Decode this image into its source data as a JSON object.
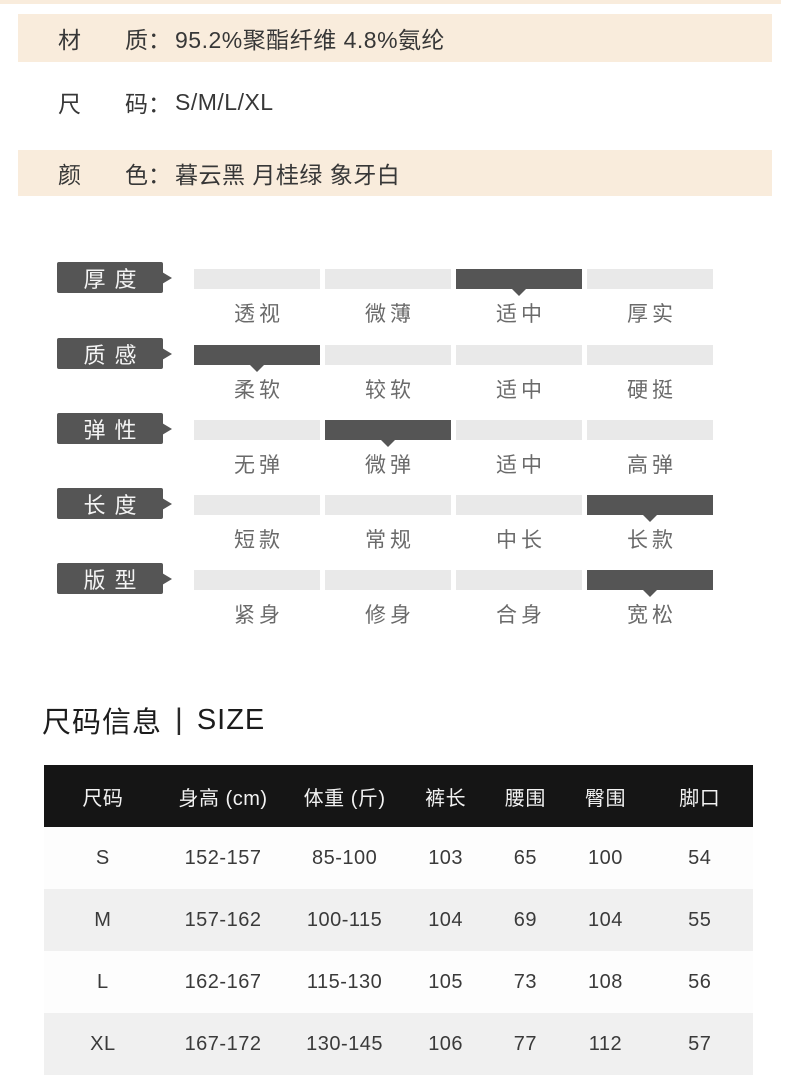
{
  "colors": {
    "highlight_band": "#f9ecdc",
    "dark_gray": "#555555",
    "light_bar": "#e9e9e9",
    "table_header_bg": "#151515",
    "table_alt_row": "#f0f0f0"
  },
  "product_info": {
    "rows": [
      {
        "label": "材质",
        "colon": "：",
        "value": "95.2%聚酯纤维 4.8%氨纶",
        "highlighted": true
      },
      {
        "label": "尺码",
        "colon": "：",
        "value": "S/M/L/XL",
        "highlighted": false
      },
      {
        "label": "颜色",
        "colon": "：",
        "value": "暮云黑 月桂绿 象牙白",
        "highlighted": true
      }
    ]
  },
  "attributes": [
    {
      "name": "厚度",
      "options": [
        "透视",
        "微薄",
        "适中",
        "厚实"
      ],
      "selected": "适中",
      "selected_index": 2
    },
    {
      "name": "质感",
      "options": [
        "柔软",
        "较软",
        "适中",
        "硬挺"
      ],
      "selected": "柔软",
      "selected_index": 0
    },
    {
      "name": "弹性",
      "options": [
        "无弹",
        "微弹",
        "适中",
        "高弹"
      ],
      "selected": "微弹",
      "selected_index": 1
    },
    {
      "name": "长度",
      "options": [
        "短款",
        "常规",
        "中长",
        "长款"
      ],
      "selected": "长款",
      "selected_index": 3
    },
    {
      "name": "版型",
      "options": [
        "紧身",
        "修身",
        "合身",
        "宽松"
      ],
      "selected": "宽松",
      "selected_index": 3
    }
  ],
  "size_section": {
    "title_cn": "尺码信息",
    "divider": "|",
    "title_en": "SIZE",
    "table": {
      "headers": [
        "尺码",
        "身高 (cm)",
        "体重 (斤)",
        "裤长",
        "腰围",
        "臀围",
        "脚口"
      ],
      "rows": [
        [
          "S",
          "152-157",
          "85-100",
          "103",
          "65",
          "100",
          "54"
        ],
        [
          "M",
          "157-162",
          "100-115",
          "104",
          "69",
          "104",
          "55"
        ],
        [
          "L",
          "162-167",
          "115-130",
          "105",
          "73",
          "108",
          "56"
        ],
        [
          "XL",
          "167-172",
          "130-145",
          "106",
          "77",
          "112",
          "57"
        ]
      ]
    }
  }
}
